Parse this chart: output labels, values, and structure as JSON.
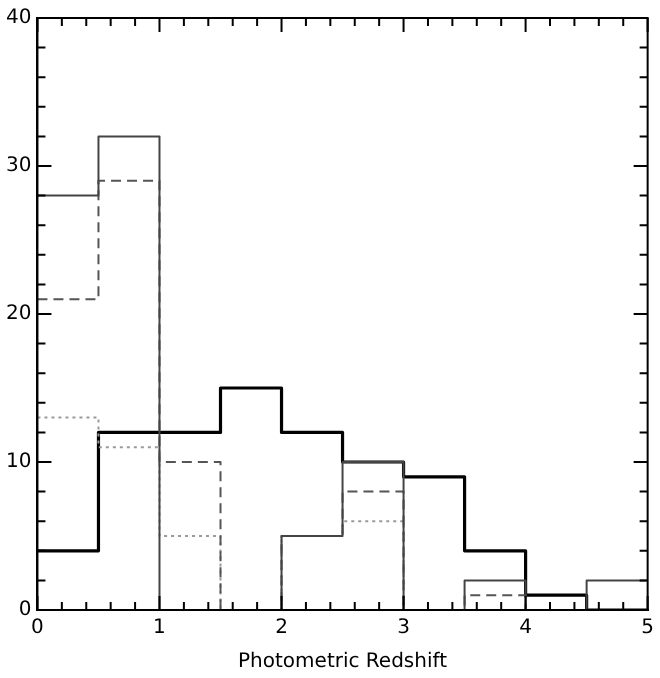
{
  "chart_data": {
    "type": "histogram",
    "xlabel": "Photometric Redshift",
    "bins": [
      0,
      0.5,
      1,
      1.5,
      2,
      2.5,
      3,
      3.5,
      4,
      4.5,
      5
    ],
    "series": [
      {
        "color": "#444444",
        "line_style": "solid",
        "values": [
          28,
          32,
          0,
          0,
          5,
          10,
          0,
          2,
          0,
          2
        ]
      },
      {
        "color": "#555555",
        "line_style": "dashed",
        "values": [
          21,
          29,
          10,
          0,
          5,
          8,
          0,
          1,
          0,
          0
        ]
      },
      {
        "color": "#999999",
        "line_style": "dotted",
        "values": [
          13,
          11,
          5,
          0,
          5,
          6,
          0,
          0,
          0,
          0
        ]
      },
      {
        "color": "#000000",
        "line_style": "solid",
        "values": [
          4,
          12,
          12,
          15,
          12,
          10,
          9,
          4,
          1,
          0
        ]
      }
    ],
    "xlim": [
      0,
      5
    ],
    "xticks": [
      0,
      {
        "value": 0.2,
        "label": null
      },
      {
        "value": 0.4,
        "label": null
      },
      {
        "value": 0.6,
        "label": null
      },
      {
        "value": 0.8,
        "label": null
      },
      1,
      {
        "value": 1.2,
        "label": null
      },
      {
        "value": 1.4,
        "label": null
      },
      {
        "value": 1.6,
        "label": null
      },
      {
        "value": 1.8,
        "label": null
      },
      2,
      {
        "value": 2.2,
        "label": null
      },
      {
        "value": 2.4,
        "label": null
      },
      {
        "value": 2.6,
        "label": null
      },
      {
        "value": 2.8,
        "label": null
      },
      3,
      {
        "value": 3.2,
        "label": null
      },
      {
        "value": 3.4,
        "label": null
      },
      {
        "value": 3.6,
        "label": null
      },
      {
        "value": 3.8,
        "label": null
      },
      4,
      {
        "value": 4.2,
        "label": null
      },
      {
        "value": 4.4,
        "label": null
      },
      {
        "value": 4.6,
        "label": null
      },
      {
        "value": 4.8,
        "label": null
      },
      5
    ],
    "ylim": [
      0,
      40
    ],
    "yticks": [
      0,
      {
        "value": 2,
        "label": null
      },
      {
        "value": 4,
        "label": null
      },
      {
        "value": 6,
        "label": null
      },
      {
        "value": 8,
        "label": null
      },
      10,
      {
        "value": 12,
        "label": null
      },
      {
        "value": 14,
        "label": null
      },
      {
        "value": 16,
        "label": null
      },
      {
        "value": 18,
        "label": null
      },
      20,
      {
        "value": 22,
        "label": null
      },
      {
        "value": 24,
        "label": null
      },
      {
        "value": 26,
        "label": null
      },
      {
        "value": 28,
        "label": null
      },
      30,
      {
        "value": 32,
        "label": null
      },
      {
        "value": 34,
        "label": null
      },
      {
        "value": 36,
        "label": null
      },
      {
        "value": 38,
        "label": null
      },
      40
    ],
    "grid": false,
    "legend": false
  }
}
